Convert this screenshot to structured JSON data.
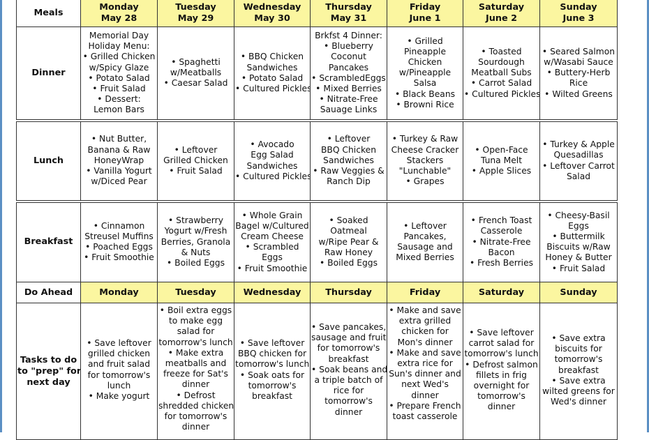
{
  "header": {
    "corner": "Meals",
    "days": [
      [
        "Monday",
        "May 28"
      ],
      [
        "Tuesday",
        "May 29"
      ],
      [
        "Wednesday",
        "May 30"
      ],
      [
        "Thursday",
        "May 31"
      ],
      [
        "Friday",
        "June 1"
      ],
      [
        "Saturday",
        "June 2"
      ],
      [
        "Sunday",
        "June 3"
      ]
    ]
  },
  "rows": [
    {
      "label": [
        "Dinner"
      ],
      "cells": [
        [
          "Memorial Day",
          "Holiday Menu:",
          "• Grilled Chicken",
          "w/Spicy Glaze",
          "• Potato Salad",
          "• Fruit Salad",
          "• Dessert:",
          "Lemon Bars"
        ],
        [
          "• Spaghetti",
          "w/Meatballs",
          "• Caesar Salad"
        ],
        [
          "• BBQ Chicken",
          "Sandwiches",
          "• Potato Salad",
          "• Cultured Pickles"
        ],
        [
          "Brkfst 4 Dinner:",
          "• Blueberry",
          "Coconut",
          "Pancakes",
          "• ScrambledEggs",
          "• Mixed Berries",
          "• Nitrate-Free",
          "Sauage Links"
        ],
        [
          "• Grilled",
          "Pineapple",
          "Chicken",
          "w/Pineapple",
          "Salsa",
          "• Black Beans",
          "• Browni Rice"
        ],
        [
          "• Toasted",
          "Sourdough",
          "Meatball Subs",
          "• Carrot Salad",
          "• Cultured Pickles"
        ],
        [
          "• Seared Salmon",
          "w/Wasabi Sauce",
          "• Buttery-Herb",
          "Rice",
          "• Wilted Greens"
        ]
      ]
    },
    {
      "label": [
        "Lunch"
      ],
      "cells": [
        [
          "• Nut Butter,",
          "Banana & Raw",
          "HoneyWrap",
          "• Vanilla Yogurt",
          "w/Diced Pear"
        ],
        [
          "• Leftover",
          "Grilled Chicken",
          "• Fruit Salad"
        ],
        [
          "• Avocado",
          "Egg Salad",
          "Sandwiches",
          "• Cultured Pickles"
        ],
        [
          "• Leftover",
          "BBQ Chicken",
          "Sandwiches",
          "• Raw Veggies &",
          "Ranch Dip"
        ],
        [
          "• Turkey & Raw",
          "Cheese Cracker",
          "Stackers",
          "\"Lunchable\"",
          "• Grapes"
        ],
        [
          "• Open-Face",
          "Tuna Melt",
          "• Apple Slices"
        ],
        [
          "• Turkey & Apple",
          "Quesadillas",
          "• Leftover Carrot",
          "Salad"
        ]
      ]
    },
    {
      "label": [
        "Breakfast"
      ],
      "cells": [
        [
          "• Cinnamon",
          "Streusel Muffins",
          "• Poached Eggs",
          "• Fruit Smoothie"
        ],
        [
          "• Strawberry",
          "Yogurt w/Fresh",
          "Berries, Granola",
          "& Nuts",
          "• Boiled Eggs"
        ],
        [
          "• Whole Grain",
          "Bagel w/Cultured",
          "Cream Cheese",
          "• Scrambled",
          "Eggs",
          "• Fruit Smoothie"
        ],
        [
          "• Soaked",
          "Oatmeal",
          "w/Ripe Pear &",
          "Raw Honey",
          "• Boiled Eggs"
        ],
        [
          "• Leftover",
          "Pancakes,",
          "Sausage and",
          "Mixed Berries"
        ],
        [
          "• French Toast",
          "Casserole",
          "• Nitrate-Free",
          "Bacon",
          "• Fresh Berries"
        ],
        [
          "• Cheesy-Basil",
          "Eggs",
          "• Buttermilk",
          "Biscuits w/Raw",
          "Honey & Butter",
          "• Fruit Salad"
        ]
      ]
    }
  ],
  "do_ahead": {
    "corner": "Do Ahead",
    "days": [
      "Monday",
      "Tuesday",
      "Wednesday",
      "Thursday",
      "Friday",
      "Saturday",
      "Sunday"
    ]
  },
  "tasks": {
    "label": [
      "Tasks to do",
      "to \"prep\" for",
      "next day"
    ],
    "cells": [
      [
        "• Save leftover",
        "grilled chicken",
        "and fruit salad",
        "for tomorrow's",
        "lunch",
        "• Make yogurt"
      ],
      [
        "• Boil extra eggs",
        "to make egg",
        "salad for",
        "tomorrow's lunch",
        "• Make extra",
        "meatballs and",
        "freeze for Sat's",
        "dinner",
        "• Defrost",
        "shredded chicken",
        "for tomorrow's",
        "dinner"
      ],
      [
        "• Save leftover",
        "BBQ chicken for",
        "tomorrow's lunch",
        "• Soak oats for",
        "tomorrow's",
        "breakfast"
      ],
      [
        "• Save pancakes,",
        "sausage and fruit",
        "for tomorrow's",
        "breakfast",
        "• Soak beans and",
        "a triple batch of",
        "rice for",
        "tomorrow's",
        "dinner"
      ],
      [
        "• Make and save",
        "extra grilled",
        "chicken for",
        "Mon's dinner",
        "• Make and save",
        "extra rice for",
        "Sun's dinner and",
        "next Wed's",
        "dinner",
        "• Prepare French",
        "toast casserole"
      ],
      [
        "• Save leftover",
        "carrot salad for",
        "tomorrow's lunch",
        "• Defrost salmon",
        "fillets in frig",
        "overnight for",
        "tomorrow's",
        "dinner"
      ],
      [
        "• Save extra",
        "biscuits for",
        "tomorrow's",
        "breakfast",
        "• Save extra",
        "wilted greens for",
        "Wed's dinner"
      ]
    ]
  },
  "colors": {
    "header_fill": "#fbf6a0",
    "border": "#333333",
    "window_edge": "#5b8fc4"
  }
}
